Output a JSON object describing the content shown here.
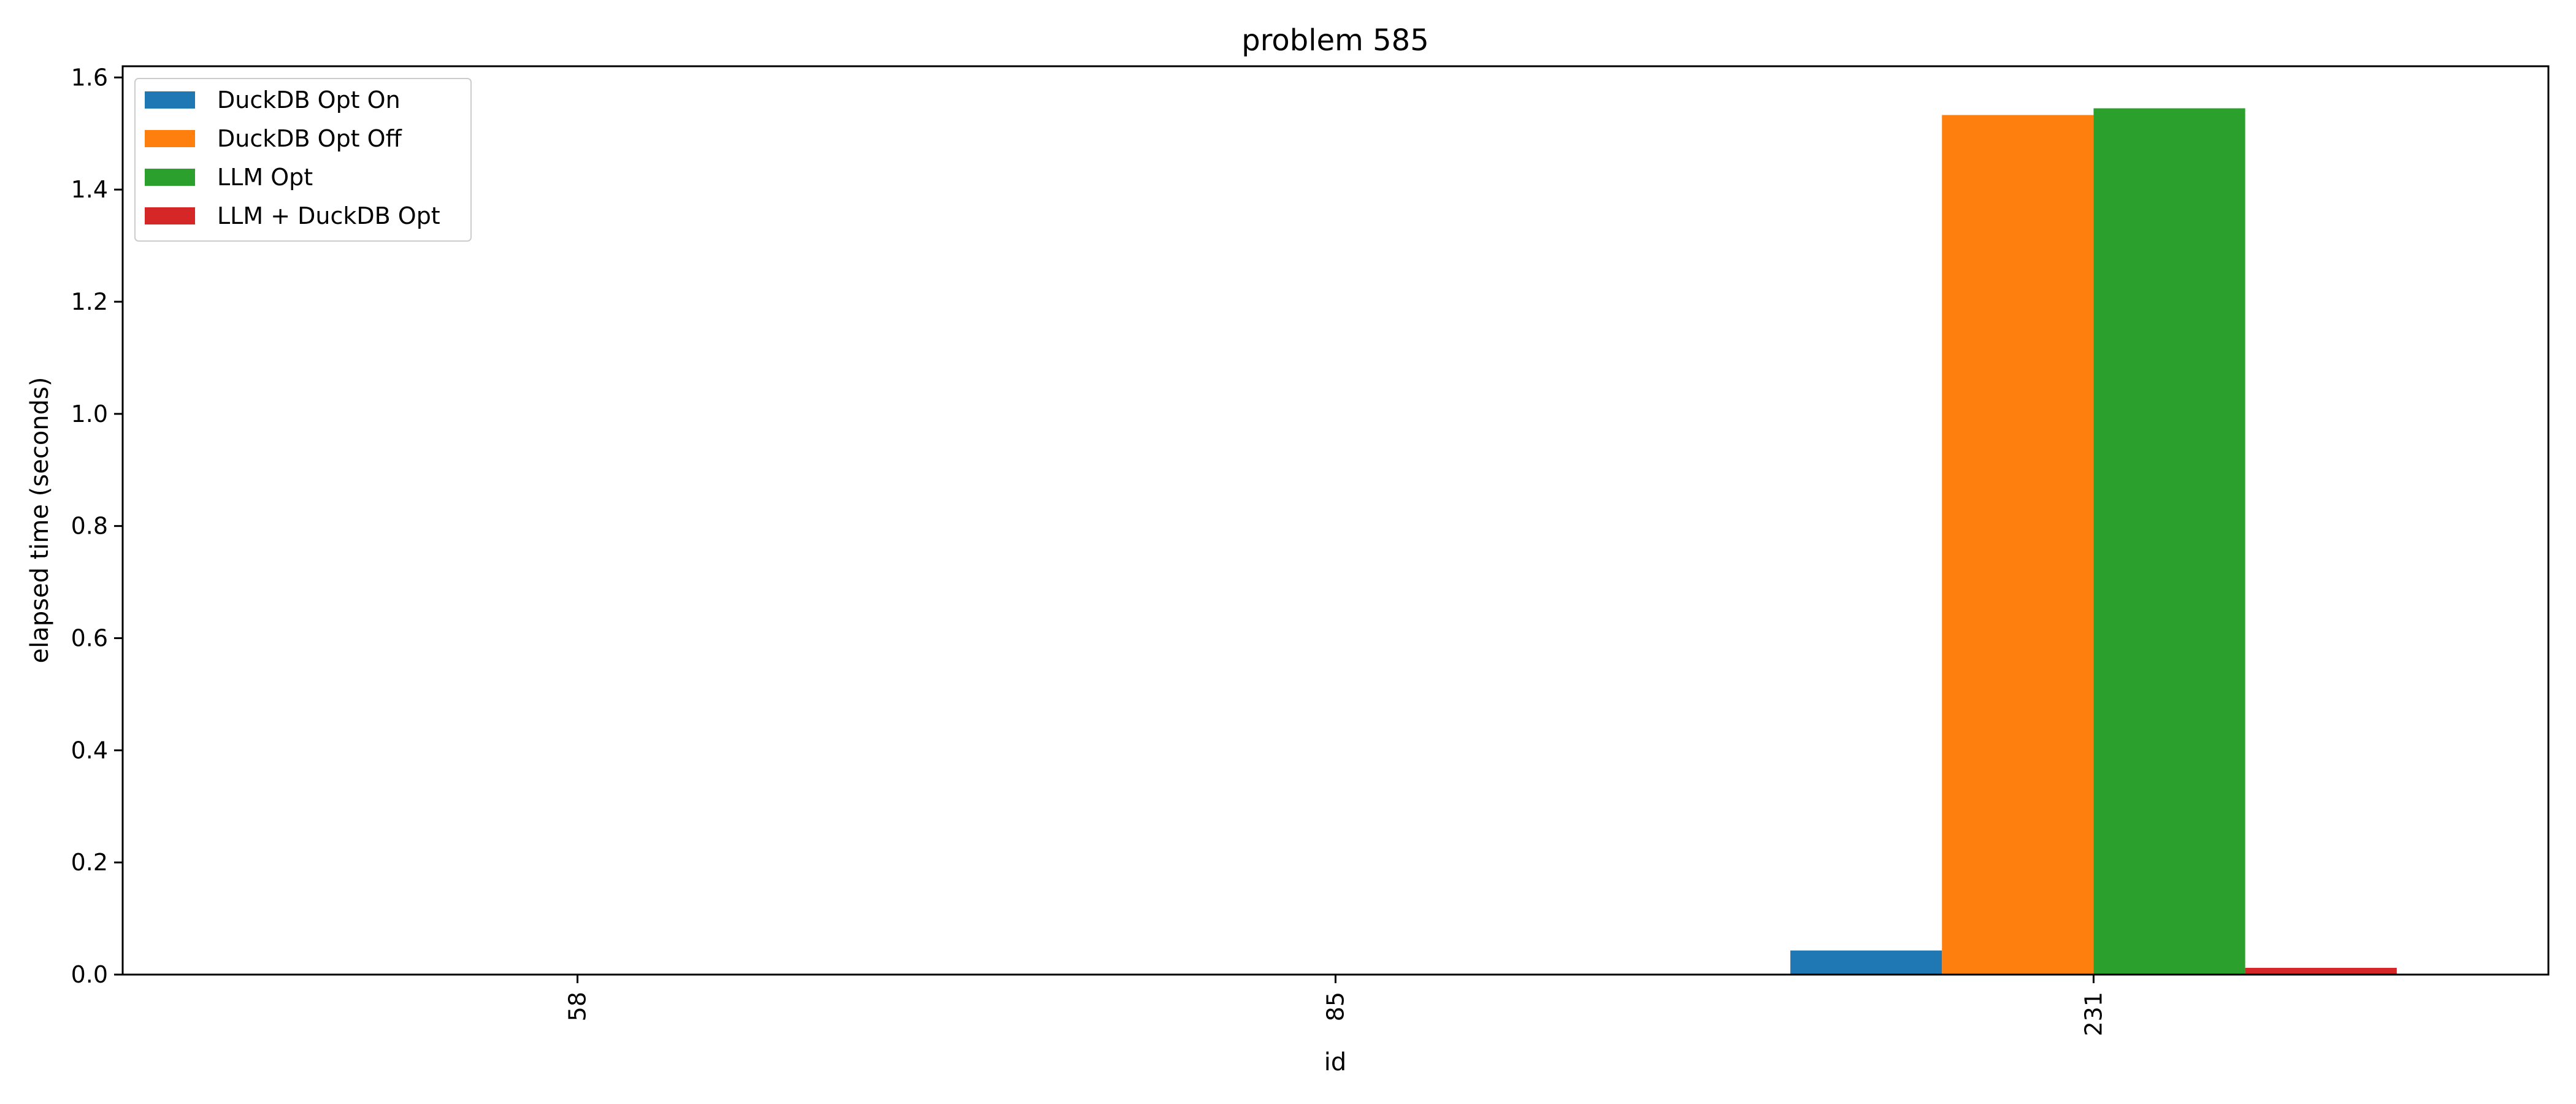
{
  "chart_data": {
    "type": "bar",
    "title": "problem 585",
    "xlabel": "id",
    "ylabel": "elapsed time (seconds)",
    "categories": [
      "58",
      "85",
      "231"
    ],
    "ylim": [
      0,
      1.62
    ],
    "yticks": [
      "0.0",
      "0.2",
      "0.4",
      "0.6",
      "0.8",
      "1.0",
      "1.2",
      "1.4",
      "1.6"
    ],
    "grid": false,
    "legend_position": "top-left",
    "series": [
      {
        "name": "DuckDB Opt On",
        "color": "#1f77b4",
        "values": [
          0,
          0,
          0.043
        ]
      },
      {
        "name": "DuckDB Opt Off",
        "color": "#ff7f0e",
        "values": [
          0,
          0,
          1.533
        ]
      },
      {
        "name": "LLM Opt",
        "color": "#2ca02c",
        "values": [
          0,
          0,
          1.545
        ]
      },
      {
        "name": "LLM + DuckDB Opt",
        "color": "#d62728",
        "values": [
          0,
          0,
          0.012
        ]
      }
    ]
  }
}
